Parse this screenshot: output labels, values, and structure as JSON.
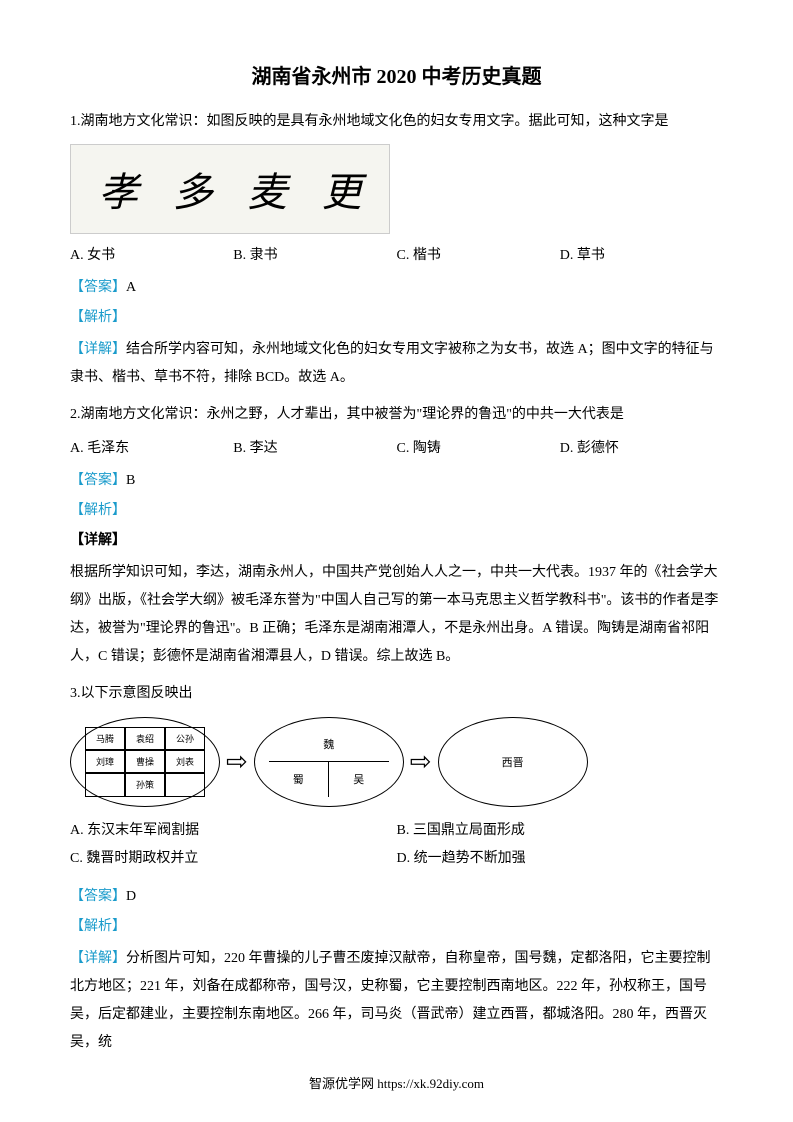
{
  "document": {
    "title": "湖南省永州市 2020 中考历史真题",
    "footer": "智源优学网 https://xk.92diy.com"
  },
  "colors": {
    "accent": "#1a9bcb",
    "text": "#000000",
    "background": "#ffffff"
  },
  "questions": {
    "q1": {
      "stem": "1.湖南地方文化常识：如图反映的是具有永州地域文化色的妇女专用文字。据此可知，这种文字是",
      "glyphs": [
        "孝",
        "多",
        "麦",
        "更"
      ],
      "options": {
        "a": "A.  女书",
        "b": "B.  隶书",
        "c": "C.  楷书",
        "d": "D.  草书"
      },
      "answer_label": "【答案】",
      "answer": "A",
      "analysis_label": "【解析】",
      "detail_prefix": "【详解】",
      "detail": "结合所学内容可知，永州地域文化色的妇女专用文字被称之为女书，故选 A；图中文字的特征与隶书、楷书、草书不符，排除 BCD。故选 A。"
    },
    "q2": {
      "stem": "2.湖南地方文化常识：永州之野，人才辈出，其中被誉为\"理论界的鲁迅\"的中共一大代表是",
      "options": {
        "a": "A.  毛泽东",
        "b": "B.  李达",
        "c": "C.  陶铸",
        "d": "D.  彭德怀"
      },
      "answer_label": "【答案】",
      "answer": "B",
      "analysis_label": "【解析】",
      "detail_label": "【详解】",
      "detail": "根据所学知识可知，李达，湖南永州人，中国共产党创始人人之一，中共一大代表。1937 年的《社会学大纲》出版，《社会学大纲》被毛泽东誉为\"中国人自己写的第一本马克思主义哲学教科书\"。该书的作者是李达，被誉为\"理论界的鲁迅\"。B 正确；毛泽东是湖南湘潭人，不是永州出身。A 错误。陶铸是湖南省祁阳人，C 错误；彭德怀是湖南省湘潭县人，D 错误。综上故选 B。"
    },
    "q3": {
      "stem": "3.以下示意图反映出",
      "diagram": {
        "ellipse1_cells": [
          "",
          "公孙",
          "",
          "马腾",
          "袁绍",
          "公孙",
          "刘璋",
          "曹操",
          "刘表",
          "",
          "孙策",
          ""
        ],
        "ellipse2": {
          "top": "魏",
          "bl": "蜀",
          "br": "吴"
        },
        "ellipse3": "西晋",
        "arrow": "⇨"
      },
      "options": {
        "a": "A.  东汉末年军阀割据",
        "b": "B.  三国鼎立局面形成",
        "c": "C.  魏晋时期政权并立",
        "d": "D.  统一趋势不断加强"
      },
      "answer_label": "【答案】",
      "answer": "D",
      "analysis_label": "【解析】",
      "detail_prefix": "【详解】",
      "detail": "分析图片可知，220 年曹操的儿子曹丕废掉汉献帝，自称皇帝，国号魏，定都洛阳，它主要控制北方地区；221 年，刘备在成都称帝，国号汉，史称蜀，它主要控制西南地区。222 年，孙权称王，国号吴，后定都建业，主要控制东南地区。266 年，司马炎（晋武帝）建立西晋，都城洛阳。280 年，西晋灭吴，统"
    }
  }
}
